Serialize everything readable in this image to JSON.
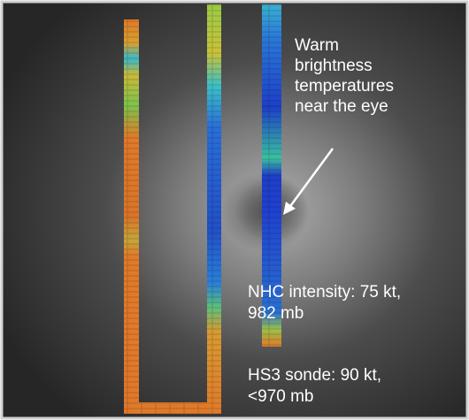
{
  "annotations": {
    "eye_note": {
      "lines": [
        "Warm",
        "brightness",
        "temperatures",
        "near the eye"
      ]
    },
    "nhc": {
      "lines": [
        "NHC intensity: 75 kt,",
        "982 mb"
      ]
    },
    "sonde": {
      "lines": [
        "HS3 sonde: 90 kt,",
        "<970 mb"
      ]
    }
  }
}
